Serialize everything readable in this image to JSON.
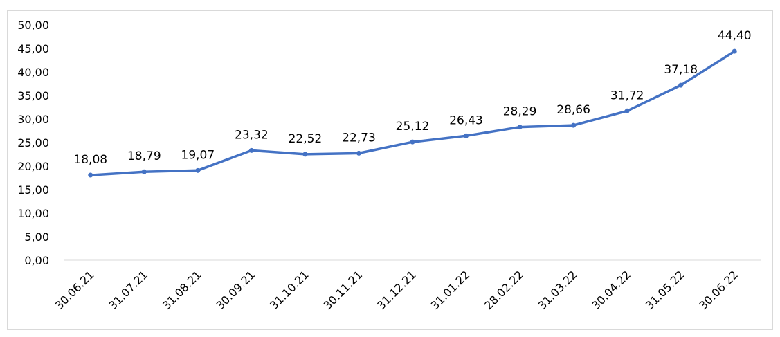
{
  "chart_data": {
    "type": "line",
    "title": "",
    "xlabel": "",
    "ylabel": "",
    "categories": [
      "30.06.21",
      "31.07.21",
      "31.08.21",
      "30.09.21",
      "31.10.21",
      "30.11.21",
      "31.12.21",
      "31.01.22",
      "28.02.22",
      "31.03.22",
      "30.04.22",
      "31.05.22",
      "30.06.22"
    ],
    "series": [
      {
        "values": [
          18.08,
          18.79,
          19.07,
          23.32,
          22.52,
          22.73,
          25.12,
          26.43,
          28.29,
          28.66,
          31.72,
          37.18,
          44.4
        ],
        "labels": [
          "18,08",
          "18,79",
          "19,07",
          "23,32",
          "22,52",
          "22,73",
          "25,12",
          "26,43",
          "28,29",
          "28,66",
          "31,72",
          "37,18",
          "44,40"
        ],
        "color": "#4472C4"
      }
    ],
    "ylim": [
      0,
      50
    ],
    "yticks": [
      "0,00",
      "5,00",
      "10,00",
      "15,00",
      "20,00",
      "25,00",
      "30,00",
      "35,00",
      "40,00",
      "45,00",
      "50,00"
    ],
    "grid": false,
    "legend": "none",
    "axis_color": "#d9d9d9"
  }
}
